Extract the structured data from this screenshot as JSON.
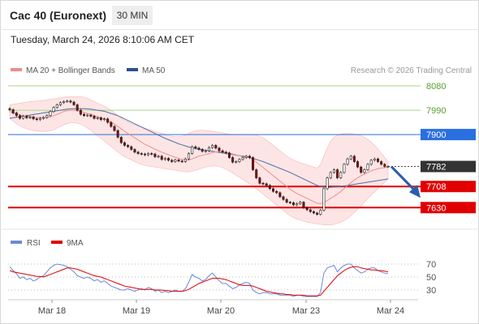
{
  "header": {
    "title": "Cac 40 (Euronext)",
    "timeframe": "30 MIN",
    "datetime": "Tuesday, March 24, 2026 8:10:06 AM CET"
  },
  "copyright": "Research © 2026 Trading Central",
  "colors": {
    "bollinger_fill": "#fcdcdc",
    "ma20": "#f08c8c",
    "ma50": "#4a6fa5",
    "resistance_blue": "#2a6fe0",
    "support_red": "#e00000",
    "level_green": "#a8d68c",
    "candle_up": "#ffffff",
    "candle_down": "#8b0000",
    "rsi": "#6a8ad8",
    "rsi_ma": "#e00000",
    "forecast_arrow": "#2a5caa"
  },
  "chart_data": [
    {
      "type": "candlestick",
      "name": "price",
      "legend": [
        "MA 20 + Bollinger Bands",
        "MA 50"
      ],
      "ylim": [
        7550,
        8110
      ],
      "x_ticks": [
        "Mar 18",
        "Mar 19",
        "Mar 20",
        "Mar 23",
        "Mar 24"
      ],
      "levels": [
        {
          "value": 8080,
          "label": "8080",
          "kind": "target"
        },
        {
          "value": 7990,
          "label": "7990",
          "kind": "target"
        },
        {
          "value": 7900,
          "label": "7900",
          "kind": "resistance"
        },
        {
          "value": 7782,
          "label": "7782",
          "kind": "last"
        },
        {
          "value": 7708,
          "label": "7708",
          "kind": "support"
        },
        {
          "value": 7630,
          "label": "7630",
          "kind": "support"
        }
      ],
      "close": [
        7992,
        7980,
        7970,
        7960,
        7968,
        7962,
        7965,
        7958,
        7955,
        7960,
        7963,
        7970,
        7985,
        8000,
        8010,
        8018,
        8022,
        8024,
        8020,
        8010,
        7990,
        7975,
        7970,
        7972,
        7968,
        7960,
        7962,
        7955,
        7958,
        7945,
        7930,
        7915,
        7890,
        7870,
        7860,
        7855,
        7845,
        7835,
        7830,
        7828,
        7825,
        7830,
        7828,
        7818,
        7820,
        7808,
        7812,
        7805,
        7800,
        7806,
        7802,
        7800,
        7810,
        7830,
        7855,
        7850,
        7845,
        7838,
        7840,
        7852,
        7860,
        7850,
        7840,
        7835,
        7832,
        7815,
        7798,
        7800,
        7808,
        7815,
        7820,
        7815,
        7770,
        7740,
        7720,
        7718,
        7712,
        7700,
        7690,
        7685,
        7670,
        7660,
        7650,
        7648,
        7640,
        7645,
        7650,
        7630,
        7622,
        7615,
        7610,
        7605,
        7620,
        7700,
        7740,
        7760,
        7770,
        7740,
        7760,
        7790,
        7810,
        7820,
        7800,
        7780,
        7760,
        7770,
        7790,
        7805,
        7810,
        7800,
        7790,
        7782,
        7782
      ],
      "ma20": [
        7985,
        7980,
        7976,
        7973,
        7970,
        7968,
        7966,
        7964,
        7963,
        7963,
        7963,
        7964,
        7966,
        7970,
        7975,
        7980,
        7985,
        7988,
        7990,
        7990,
        7988,
        7985,
        7982,
        7978,
        7975,
        7970,
        7966,
        7962,
        7958,
        7952,
        7946,
        7938,
        7930,
        7921,
        7912,
        7904,
        7896,
        7888,
        7880,
        7872,
        7864,
        7858,
        7852,
        7846,
        7840,
        7835,
        7830,
        7825,
        7820,
        7816,
        7812,
        7808,
        7806,
        7806,
        7810,
        7815,
        7820,
        7823,
        7826,
        7830,
        7834,
        7836,
        7836,
        7835,
        7834,
        7832,
        7828,
        7825,
        7822,
        7818,
        7816,
        7814,
        7808,
        7798,
        7788,
        7778,
        7768,
        7758,
        7748,
        7738,
        7728,
        7718,
        7708,
        7698,
        7690,
        7682,
        7676,
        7670,
        7664,
        7658,
        7652,
        7646,
        7645,
        7648,
        7656,
        7664,
        7672,
        7680,
        7690,
        7700,
        7712,
        7722,
        7732,
        7740,
        7748,
        7754,
        7760,
        7766,
        7770,
        7774,
        7776,
        7778,
        7779
      ],
      "ma50": [
        7960,
        7962,
        7964,
        7966,
        7968,
        7970,
        7972,
        7974,
        7976,
        7978,
        7980,
        7982,
        7984,
        7986,
        7988,
        7990,
        7992,
        7994,
        7995,
        7996,
        7996,
        7996,
        7996,
        7995,
        7994,
        7992,
        7990,
        7988,
        7986,
        7982,
        7978,
        7974,
        7970,
        7964,
        7958,
        7952,
        7946,
        7940,
        7934,
        7928,
        7922,
        7916,
        7910,
        7904,
        7898,
        7892,
        7886,
        7881,
        7876,
        7871,
        7866,
        7862,
        7858,
        7854,
        7851,
        7848,
        7846,
        7844,
        7842,
        7840,
        7838,
        7836,
        7834,
        7832,
        7830,
        7828,
        7826,
        7824,
        7822,
        7820,
        7818,
        7815,
        7812,
        7808,
        7804,
        7800,
        7795,
        7790,
        7785,
        7780,
        7775,
        7770,
        7765,
        7760,
        7754,
        7748,
        7742,
        7736,
        7730,
        7724,
        7718,
        7712,
        7708,
        7706,
        7705,
        7705,
        7706,
        7707,
        7708,
        7710,
        7712,
        7714,
        7716,
        7718,
        7720,
        7722,
        7724,
        7726,
        7728,
        7730,
        7732,
        7734,
        7736
      ],
      "bb_upper": [
        8010,
        8012,
        8014,
        8016,
        8018,
        8020,
        8022,
        8023,
        8024,
        8025,
        8026,
        8028,
        8030,
        8032,
        8034,
        8036,
        8038,
        8040,
        8040,
        8040,
        8040,
        8040,
        8038,
        8034,
        8028,
        8022,
        8016,
        8010,
        8004,
        7998,
        7990,
        7980,
        7970,
        7960,
        7952,
        7946,
        7940,
        7936,
        7932,
        7928,
        7924,
        7920,
        7916,
        7912,
        7908,
        7904,
        7900,
        7896,
        7894,
        7892,
        7892,
        7894,
        7898,
        7904,
        7910,
        7914,
        7916,
        7916,
        7915,
        7914,
        7912,
        7910,
        7908,
        7906,
        7904,
        7902,
        7900,
        7900,
        7900,
        7900,
        7900,
        7900,
        7900,
        7898,
        7894,
        7888,
        7880,
        7870,
        7860,
        7850,
        7840,
        7830,
        7820,
        7812,
        7806,
        7800,
        7796,
        7792,
        7788,
        7784,
        7780,
        7776,
        7790,
        7820,
        7850,
        7875,
        7890,
        7898,
        7902,
        7904,
        7904,
        7904,
        7902,
        7900,
        7896,
        7890,
        7882,
        7872,
        7860,
        7846,
        7830,
        7815,
        7800
      ],
      "bb_lower": [
        7960,
        7950,
        7940,
        7932,
        7926,
        7922,
        7918,
        7915,
        7913,
        7912,
        7912,
        7912,
        7914,
        7918,
        7924,
        7930,
        7936,
        7940,
        7944,
        7944,
        7942,
        7938,
        7932,
        7924,
        7916,
        7906,
        7896,
        7886,
        7876,
        7866,
        7856,
        7846,
        7836,
        7826,
        7818,
        7812,
        7806,
        7800,
        7794,
        7790,
        7786,
        7784,
        7782,
        7780,
        7778,
        7776,
        7774,
        7772,
        7770,
        7768,
        7766,
        7764,
        7762,
        7762,
        7764,
        7768,
        7772,
        7776,
        7780,
        7782,
        7784,
        7784,
        7782,
        7778,
        7772,
        7766,
        7758,
        7750,
        7742,
        7734,
        7726,
        7718,
        7710,
        7700,
        7690,
        7680,
        7670,
        7660,
        7650,
        7640,
        7630,
        7620,
        7610,
        7600,
        7594,
        7588,
        7584,
        7580,
        7576,
        7574,
        7572,
        7570,
        7568,
        7566,
        7566,
        7566,
        7568,
        7572,
        7576,
        7582,
        7590,
        7600,
        7612,
        7624,
        7636,
        7650,
        7664,
        7676,
        7688,
        7700,
        7712,
        7724,
        7736
      ]
    },
    {
      "type": "line",
      "name": "RSI",
      "legend": [
        "RSI",
        "9MA"
      ],
      "ylim": [
        20,
        80
      ],
      "y_ticks": [
        70,
        50,
        30
      ],
      "rsi": [
        66,
        60,
        55,
        48,
        50,
        46,
        48,
        44,
        46,
        50,
        52,
        58,
        64,
        68,
        70,
        69,
        68,
        66,
        62,
        58,
        52,
        50,
        48,
        50,
        48,
        44,
        46,
        42,
        44,
        40,
        36,
        34,
        32,
        30,
        30,
        32,
        30,
        28,
        30,
        32,
        30,
        34,
        32,
        28,
        30,
        26,
        28,
        26,
        28,
        30,
        28,
        28,
        32,
        42,
        54,
        50,
        48,
        44,
        46,
        52,
        56,
        50,
        44,
        40,
        40,
        36,
        32,
        34,
        38,
        40,
        42,
        40,
        30,
        26,
        24,
        26,
        26,
        24,
        24,
        24,
        22,
        22,
        22,
        22,
        20,
        22,
        22,
        20,
        20,
        20,
        20,
        20,
        26,
        56,
        64,
        66,
        68,
        58,
        64,
        68,
        70,
        70,
        64,
        60,
        56,
        58,
        62,
        64,
        64,
        60,
        58,
        56,
        55
      ],
      "rsi_ma": [
        60,
        58,
        57,
        56,
        55,
        54,
        53,
        52,
        51,
        51,
        50,
        52,
        54,
        56,
        58,
        60,
        62,
        64,
        64,
        63,
        62,
        60,
        58,
        56,
        54,
        52,
        51,
        50,
        48,
        46,
        44,
        42,
        40,
        38,
        36,
        35,
        34,
        33,
        32,
        31,
        31,
        31,
        31,
        30,
        30,
        30,
        29,
        29,
        28,
        28,
        28,
        28,
        29,
        31,
        34,
        37,
        40,
        42,
        44,
        46,
        48,
        48,
        48,
        47,
        46,
        44,
        42,
        40,
        38,
        37,
        37,
        37,
        36,
        34,
        32,
        30,
        28,
        27,
        26,
        25,
        24,
        24,
        23,
        23,
        22,
        22,
        22,
        22,
        21,
        21,
        21,
        21,
        22,
        28,
        34,
        40,
        46,
        52,
        56,
        60,
        63,
        65,
        66,
        66,
        64,
        63,
        62,
        61,
        61,
        60,
        60,
        59,
        58
      ]
    }
  ]
}
